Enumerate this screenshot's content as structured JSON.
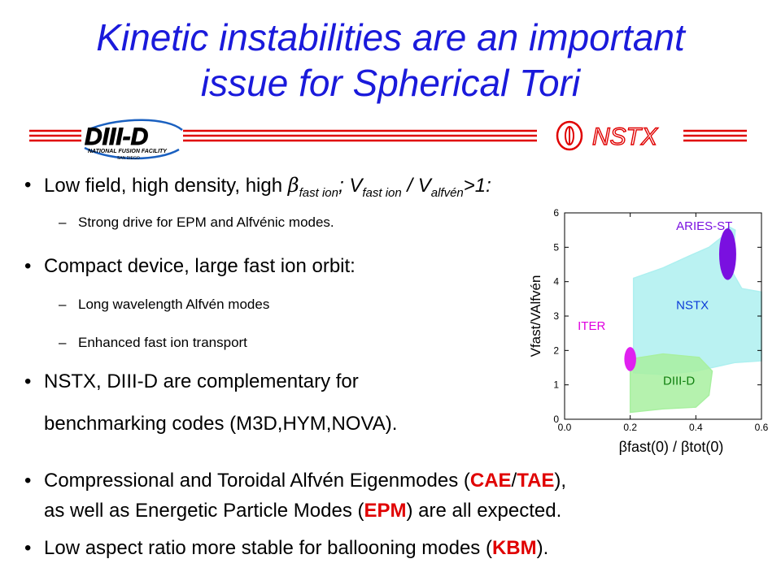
{
  "title": {
    "line1": "Kinetic instabilities are an important",
    "line2": "issue for Spherical Tori"
  },
  "logos": {
    "diiid_text": "DIII-D",
    "diiid_sub1": "NATIONAL FUSION FACILITY",
    "diiid_sub2": "SAN DIEGO",
    "nstx_text": "NSTX"
  },
  "bullets": {
    "b1": {
      "pre": "Low field, high density, high ",
      "beta": "β",
      "sub1": "fast ion",
      "mid": "; V",
      "sub2": "fast ion",
      "slash": " / V",
      "sub3": "alfvén",
      "post": ">1:"
    },
    "b1_sub": "Strong drive for EPM and Alfvénic modes.",
    "b2": "Compact device, large fast ion orbit:",
    "b2_sub1": "Long wavelength Alfvén modes",
    "b2_sub2": "Enhanced fast ion transport",
    "b3_line1": "NSTX, DIII-D are complementary for",
    "b3_line2": "benchmarking codes (M3D,HYM,NOVA).",
    "b4": {
      "a": "Compressional and Toroidal Alfvén Eigenmodes (",
      "cae": "CAE",
      "slash": "/",
      "tae": "TAE",
      "b": "),",
      "line2a": "as well as Energetic Particle Modes (",
      "epm": "EPM",
      "line2b": ") are all expected."
    },
    "b5": {
      "a": "Low aspect ratio more stable for ballooning modes (",
      "kbm": "KBM",
      "b": ")."
    },
    "dash": "–",
    "dot": "•"
  },
  "chart_data": {
    "type": "scatter",
    "xlim": [
      0.0,
      0.6
    ],
    "ylim": [
      0,
      6
    ],
    "xticks": [
      "0.0",
      "0.2",
      "0.4",
      "0.6"
    ],
    "yticks": [
      "0",
      "1",
      "2",
      "3",
      "4",
      "5",
      "6"
    ],
    "xlabel": "βfast(0) / βtot(0)",
    "ylabel": "Vfast/VAlfvén",
    "regions": [
      {
        "name": "NSTX",
        "color": "#aef0f0",
        "points": [
          [
            0.21,
            4.1
          ],
          [
            0.3,
            4.4
          ],
          [
            0.38,
            4.75
          ],
          [
            0.44,
            5.0
          ],
          [
            0.48,
            5.3
          ],
          [
            0.5,
            5.6
          ],
          [
            0.52,
            5.5
          ],
          [
            0.51,
            4.3
          ],
          [
            0.54,
            3.8
          ],
          [
            0.6,
            3.7
          ],
          [
            0.6,
            1.7
          ],
          [
            0.52,
            1.65
          ],
          [
            0.4,
            1.4
          ],
          [
            0.3,
            1.3
          ],
          [
            0.21,
            1.35
          ]
        ]
      },
      {
        "name": "DIII-D",
        "color": "#a8f0a0",
        "points": [
          [
            0.2,
            0.2
          ],
          [
            0.3,
            0.3
          ],
          [
            0.4,
            0.35
          ],
          [
            0.44,
            0.7
          ],
          [
            0.45,
            1.4
          ],
          [
            0.41,
            1.8
          ],
          [
            0.3,
            1.9
          ],
          [
            0.2,
            1.75
          ]
        ]
      },
      {
        "name": "ARIES-ST",
        "color": "#7a10e0",
        "ellipse": [
          0.497,
          4.8,
          0.026,
          0.75
        ]
      },
      {
        "name": "ITER",
        "color": "#e020f0",
        "ellipse": [
          0.2,
          1.75,
          0.018,
          0.35
        ]
      }
    ],
    "labels": [
      {
        "text": "ARIES-ST",
        "x": 0.34,
        "y": 5.5,
        "color": "#7a10e0"
      },
      {
        "text": "NSTX",
        "x": 0.34,
        "y": 3.2,
        "color": "#0a3ad8"
      },
      {
        "text": "ITER",
        "x": 0.04,
        "y": 2.6,
        "color": "#e000e0"
      },
      {
        "text": "DIII-D",
        "x": 0.3,
        "y": 1.0,
        "color": "#108010"
      }
    ]
  }
}
